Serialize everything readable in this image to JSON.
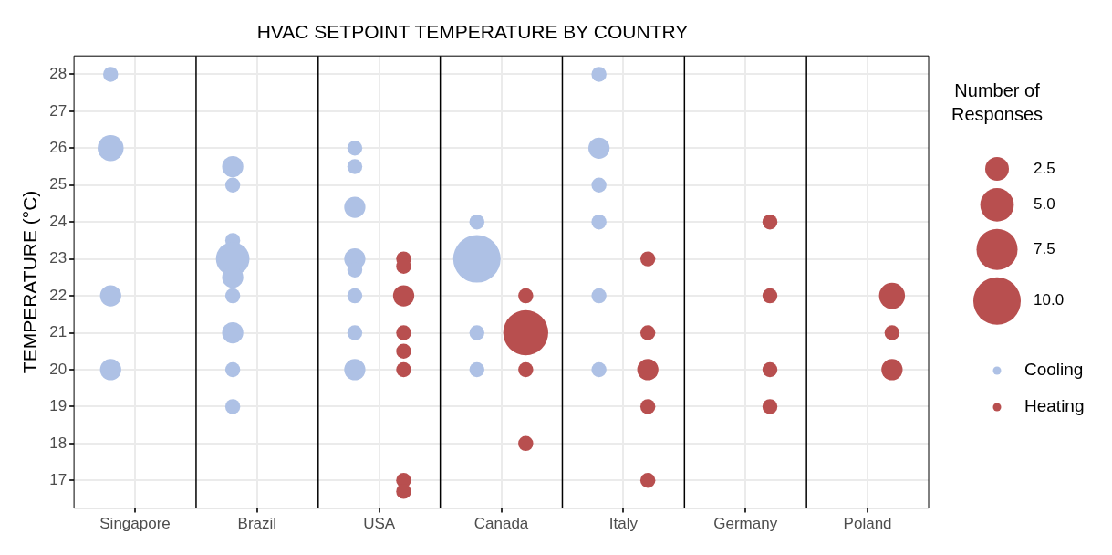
{
  "chart_data": {
    "type": "bubble",
    "title": "HVAC SETPOINT TEMPERATURE BY COUNTRY",
    "ylabel": "TEMPERATURE (°C)",
    "legend_title": "Number of Responses",
    "categories": [
      "Singapore",
      "Brazil",
      "USA",
      "Canada",
      "Italy",
      "Germany",
      "Poland"
    ],
    "series": [
      {
        "name": "Cooling",
        "color": "#aec1e5",
        "x": [
          "Singapore",
          "Singapore",
          "Singapore",
          "Singapore",
          "Brazil",
          "Brazil",
          "Brazil",
          "Brazil",
          "Brazil",
          "Brazil",
          "Brazil",
          "Brazil",
          "Brazil",
          "USA",
          "USA",
          "USA",
          "USA",
          "USA",
          "USA",
          "USA",
          "USA",
          "Canada",
          "Canada",
          "Canada",
          "Canada",
          "Italy",
          "Italy",
          "Italy",
          "Italy",
          "Italy",
          "Italy"
        ],
        "values": [
          28,
          26,
          22,
          20,
          25.5,
          25,
          23.5,
          23,
          22.5,
          22,
          21,
          20,
          19,
          26,
          25.5,
          24.4,
          23,
          22.7,
          22,
          21,
          20,
          24,
          23,
          21,
          20,
          28,
          26,
          25,
          24,
          22,
          20
        ],
        "sizes": [
          1,
          3,
          2,
          2,
          2,
          1,
          1,
          5,
          2,
          1,
          2,
          1,
          1,
          1,
          1,
          2,
          2,
          1,
          1,
          1,
          2,
          1,
          10,
          1,
          1,
          1,
          2,
          1,
          1,
          1,
          1
        ]
      },
      {
        "name": "Heating",
        "color": "#b84f4f",
        "x": [
          "USA",
          "USA",
          "USA",
          "USA",
          "USA",
          "USA",
          "USA",
          "USA",
          "Canada",
          "Canada",
          "Canada",
          "Canada",
          "Italy",
          "Italy",
          "Italy",
          "Italy",
          "Italy",
          "Germany",
          "Germany",
          "Germany",
          "Germany",
          "Poland",
          "Poland",
          "Poland"
        ],
        "values": [
          23,
          22.8,
          22,
          21,
          20.5,
          20,
          17,
          16.7,
          22,
          21,
          20,
          18,
          23,
          21,
          20,
          19,
          17,
          24,
          22,
          20,
          19,
          22,
          21,
          20
        ],
        "sizes": [
          1,
          1,
          2,
          1,
          1,
          1,
          1,
          1,
          1,
          9,
          1,
          1,
          1,
          1,
          2,
          1,
          1,
          1,
          1,
          1,
          1,
          3,
          1,
          2
        ]
      }
    ],
    "size_legend": [
      2.5,
      {
        "value": 5,
        "label": "5.0"
      },
      7.5,
      {
        "value": 10,
        "label": "10.0"
      }
    ],
    "ylim": [
      16.25,
      28.5
    ],
    "yticks": [
      17,
      18,
      19,
      20,
      21,
      22,
      23,
      24,
      25,
      26,
      27,
      28
    ],
    "grid": true,
    "legend": "right"
  }
}
